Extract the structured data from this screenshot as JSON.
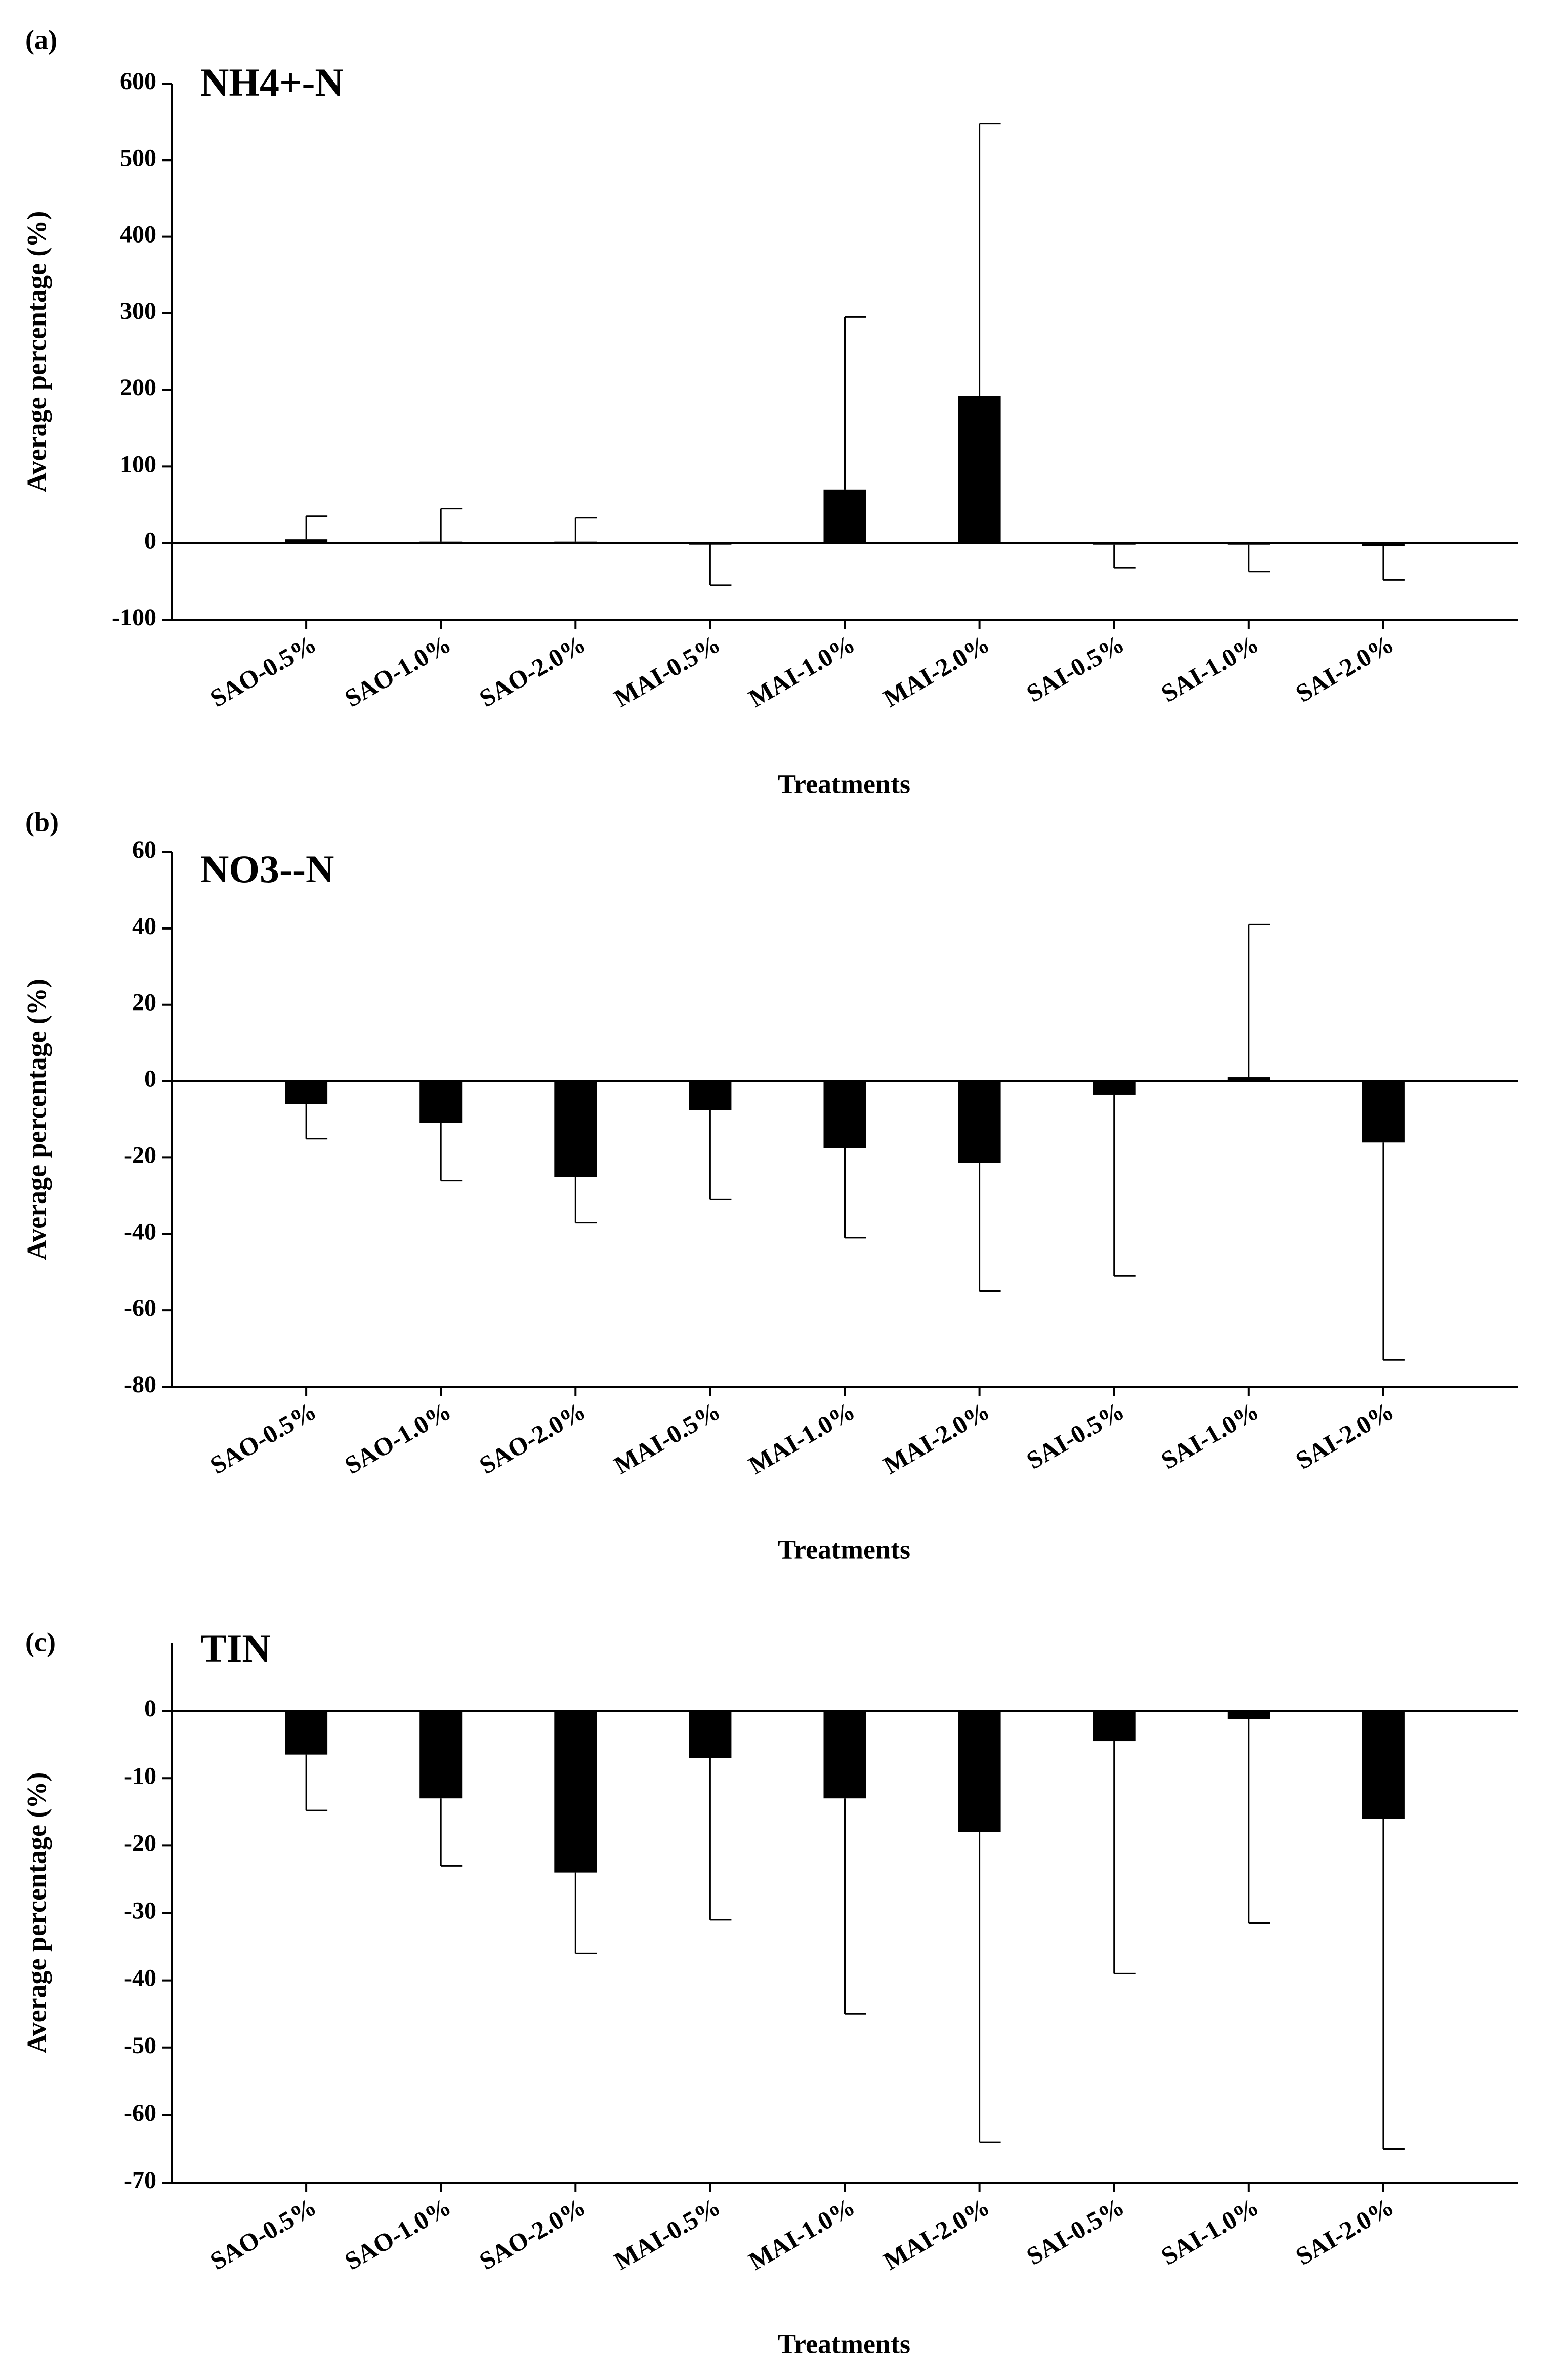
{
  "chart_data": [
    {
      "type": "bar",
      "panel_label": "(a)",
      "title": "NH4+-N",
      "x_label": "Treatments",
      "y_label": "Average percentage (%)",
      "categories": [
        "SAO-0.5%",
        "SAO-1.0%",
        "SAO-2.0%",
        "MAI-0.5%",
        "MAI-1.0%",
        "MAI-2.0%",
        "SAI-0.5%",
        "SAI-1.0%",
        "SAI-2.0%"
      ],
      "values": [
        5,
        2,
        2,
        -1,
        70,
        192,
        -2,
        -2,
        -4
      ],
      "errors": [
        30,
        43,
        31,
        54,
        225,
        356,
        30,
        35,
        44
      ],
      "color": "#000000",
      "ylim": [
        -100,
        600
      ],
      "yticks": [
        -100,
        0,
        100,
        200,
        300,
        400,
        500,
        600
      ]
    },
    {
      "type": "bar",
      "panel_label": "(b)",
      "title": "NO3--N",
      "x_label": "Treatments",
      "y_label": "Average percentage (%)",
      "categories": [
        "SAO-0.5%",
        "SAO-1.0%",
        "SAO-2.0%",
        "MAI-0.5%",
        "MAI-1.0%",
        "MAI-2.0%",
        "SAI-0.5%",
        "SAI-1.0%",
        "SAI-2.0%"
      ],
      "values": [
        -6,
        -11,
        -25,
        -7.5,
        -17.5,
        -21.5,
        -3.5,
        1,
        -16
      ],
      "errors": [
        9,
        15,
        12,
        23.5,
        23.5,
        33.5,
        47.5,
        40,
        57
      ],
      "color": "#000000",
      "ylim": [
        -80,
        60
      ],
      "yticks": [
        -80,
        -60,
        -40,
        -20,
        0,
        20,
        40,
        60
      ]
    },
    {
      "type": "bar",
      "panel_label": "(c)",
      "title": "TIN",
      "x_label": "Treatments",
      "y_label": "Average percentage (%)",
      "categories": [
        "SAO-0.5%",
        "SAO-1.0%",
        "SAO-2.0%",
        "MAI-0.5%",
        "MAI-1.0%",
        "MAI-2.0%",
        "SAI-0.5%",
        "SAI-1.0%",
        "SAI-2.0%"
      ],
      "values": [
        -6.5,
        -13,
        -24,
        -7,
        -13,
        -18,
        -4.5,
        -1.2,
        -16
      ],
      "errors": [
        8.3,
        10,
        12,
        24,
        32,
        46,
        34.5,
        30.3,
        49
      ],
      "color": "#000000",
      "ylim": [
        -70,
        10
      ],
      "yticks": [
        -70,
        -60,
        -50,
        -40,
        -30,
        -20,
        -10,
        0
      ]
    }
  ]
}
